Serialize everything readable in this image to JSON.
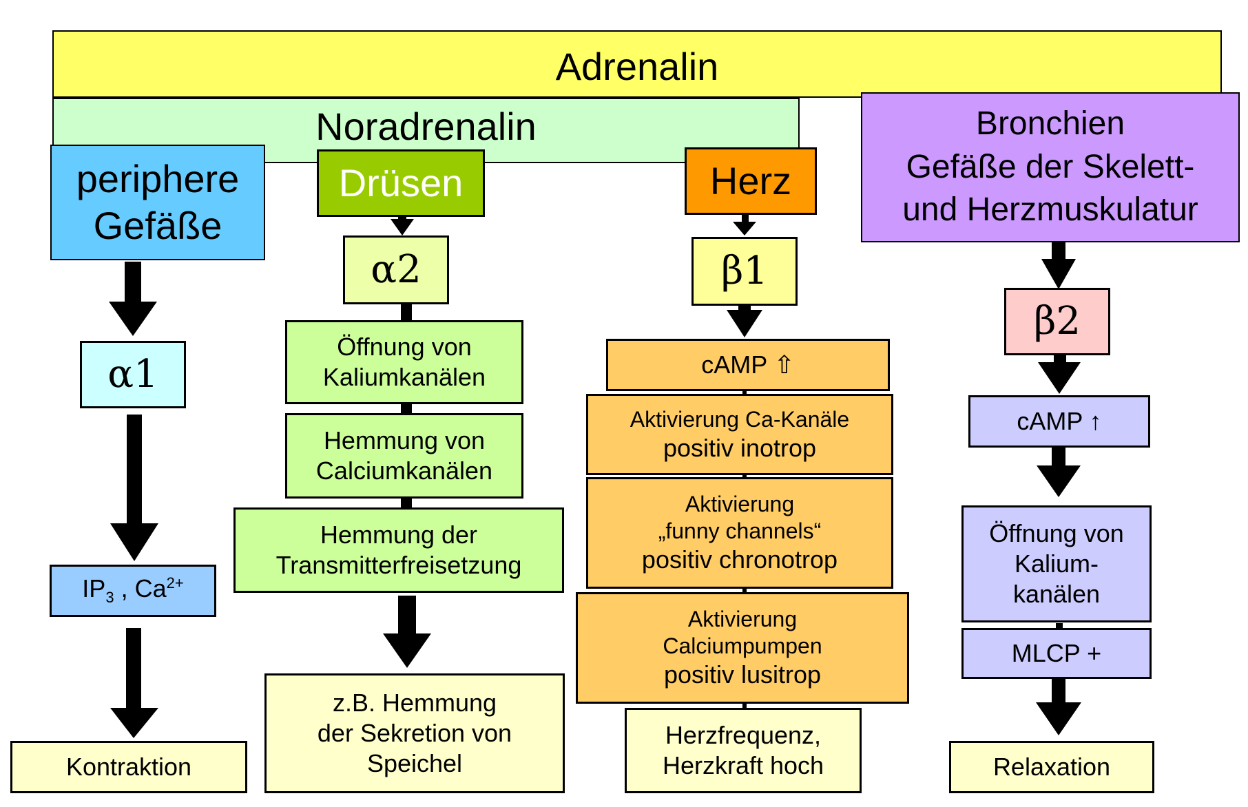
{
  "top": {
    "adrenalin": "Adrenalin",
    "noradrenalin": "Noradrenalin"
  },
  "columns": {
    "vessels": {
      "title": [
        "periphere",
        "Gefäße"
      ],
      "receptor": "α1",
      "messenger_base": "IP",
      "messenger_sub": "3",
      "messenger_mid": " , Ca",
      "messenger_sup": "2+",
      "result": "Kontraktion"
    },
    "glands": {
      "title": "Drüsen",
      "receptor": "α2",
      "steps": [
        [
          "Öffnung von",
          "Kaliumkanälen"
        ],
        [
          "Hemmung von",
          "Calciumkanälen"
        ],
        [
          "Hemmung der",
          "Transmitterfreisetzung"
        ]
      ],
      "result": [
        "z.B. Hemmung",
        "der Sekretion von",
        "Speichel"
      ]
    },
    "heart": {
      "title": "Herz",
      "receptor": "β1",
      "camp": "cAMP ⇧",
      "steps": [
        [
          "Aktivierung Ca-Kanäle",
          "positiv inotrop"
        ],
        [
          "Aktivierung",
          "„funny channels“",
          "positiv chronotrop"
        ],
        [
          "Aktivierung",
          "Calciumpumpen",
          "positiv lusitrop"
        ]
      ],
      "result": [
        "Herzfrequenz,",
        "Herzkraft hoch"
      ]
    },
    "bronchi": {
      "title": [
        "Bronchien",
        "Gefäße der Skelett-",
        "und Herzmuskulatur"
      ],
      "receptor": "β2",
      "camp": "cAMP ↑",
      "steps": [
        [
          "Öffnung von",
          "Kalium-",
          "kanälen"
        ],
        [
          "MLCP +"
        ]
      ],
      "result": "Relaxation"
    }
  },
  "colors": {
    "adrenalin": "#ffff66",
    "noradrenalin": "#ccffcc",
    "vessels_title": "#66ccff",
    "receptor_a1": "#ccffff",
    "messenger_a1": "#99ccff",
    "glands_title": "#99cc00",
    "receptor_a2": "#eeffaa",
    "glands_steps": "#ccff99",
    "heart_title": "#ff9900",
    "receptor_b1": "#ffff99",
    "heart_steps": "#ffcc66",
    "bronchi_title": "#cc99ff",
    "receptor_b2": "#ffcccc",
    "bronchi_steps": "#ccccff",
    "result": "#ffffcc"
  }
}
